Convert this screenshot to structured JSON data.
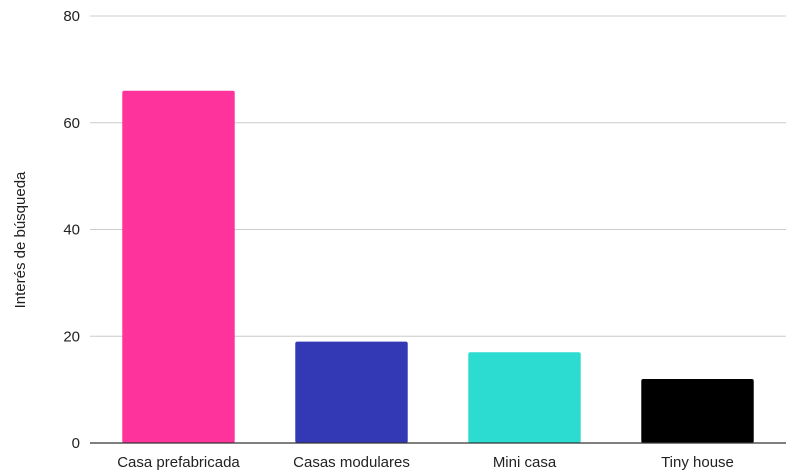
{
  "chart_data": {
    "type": "bar",
    "title": "",
    "xlabel": "",
    "ylabel": "Interés de búsqueda",
    "ylim": [
      0,
      80
    ],
    "yticks": [
      0,
      20,
      40,
      60,
      80
    ],
    "grid": true,
    "legend": "none",
    "categories": [
      "Casa prefabricada",
      "Casas modulares",
      "Mini casa",
      "Tiny house"
    ],
    "values": [
      66,
      19,
      17,
      12
    ],
    "colors": [
      "#ff339c",
      "#3339b5",
      "#2ddcd0",
      "#000000"
    ]
  }
}
